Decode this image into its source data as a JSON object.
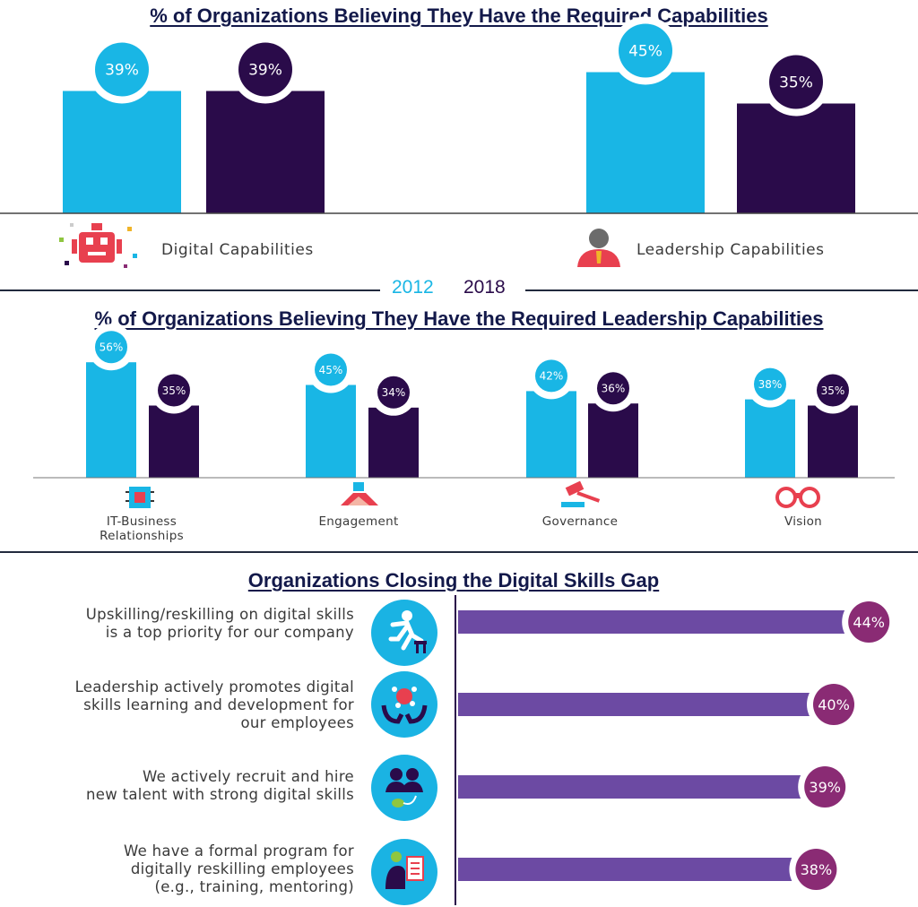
{
  "colors": {
    "y2012": "#19b6e5",
    "y2018": "#2a0b4a",
    "gap_bar": "#6c4aa3",
    "gap_badge": "#8a2b74",
    "title": "#13194a"
  },
  "legend": {
    "y2012": "2012",
    "y2018": "2018"
  },
  "chart_data": [
    {
      "type": "bar",
      "title": "% of Organizations Believing They Have the Required Capabilities",
      "categories": [
        "Digital Capabilities",
        "Leadership Capabilities"
      ],
      "category_icons": [
        "robot-icon",
        "leader-icon"
      ],
      "series": [
        {
          "name": "2012",
          "values": [
            39,
            45
          ],
          "labels": [
            "39%",
            "45%"
          ]
        },
        {
          "name": "2018",
          "values": [
            39,
            35
          ],
          "labels": [
            "39%",
            "35%"
          ]
        }
      ]
    },
    {
      "type": "bar",
      "title": "% of Organizations Believing They Have the Required Leadership Capabilities",
      "categories": [
        "IT-Business\nRelationships",
        "Engagement",
        "Governance",
        "Vision"
      ],
      "category_icons": [
        "chip-icon",
        "handshake-icon",
        "gavel-icon",
        "binoculars-icon"
      ],
      "series": [
        {
          "name": "2012",
          "values": [
            56,
            45,
            42,
            38
          ],
          "labels": [
            "56%",
            "45%",
            "42%",
            "38%"
          ]
        },
        {
          "name": "2018",
          "values": [
            35,
            34,
            36,
            35
          ],
          "labels": [
            "35%",
            "34%",
            "36%",
            "35%"
          ]
        }
      ]
    },
    {
      "type": "bar",
      "orientation": "horizontal",
      "title": "Organizations Closing the Digital Skills Gap",
      "categories": [
        "Upskilling/reskilling on digital skills\nis a top priority for our company",
        "Leadership actively promotes digital\nskills learning and development for\nour employees",
        "We actively recruit and hire\nnew talent with strong digital skills",
        "We have a formal program for\ndigitally reskilling employees\n(e.g., training, mentoring)"
      ],
      "category_icons": [
        "hurdle-runner-icon",
        "hands-network-icon",
        "people-mouse-icon",
        "person-clipboard-icon"
      ],
      "values": [
        44,
        40,
        39,
        38
      ],
      "labels": [
        "44%",
        "40%",
        "39%",
        "38%"
      ]
    }
  ]
}
